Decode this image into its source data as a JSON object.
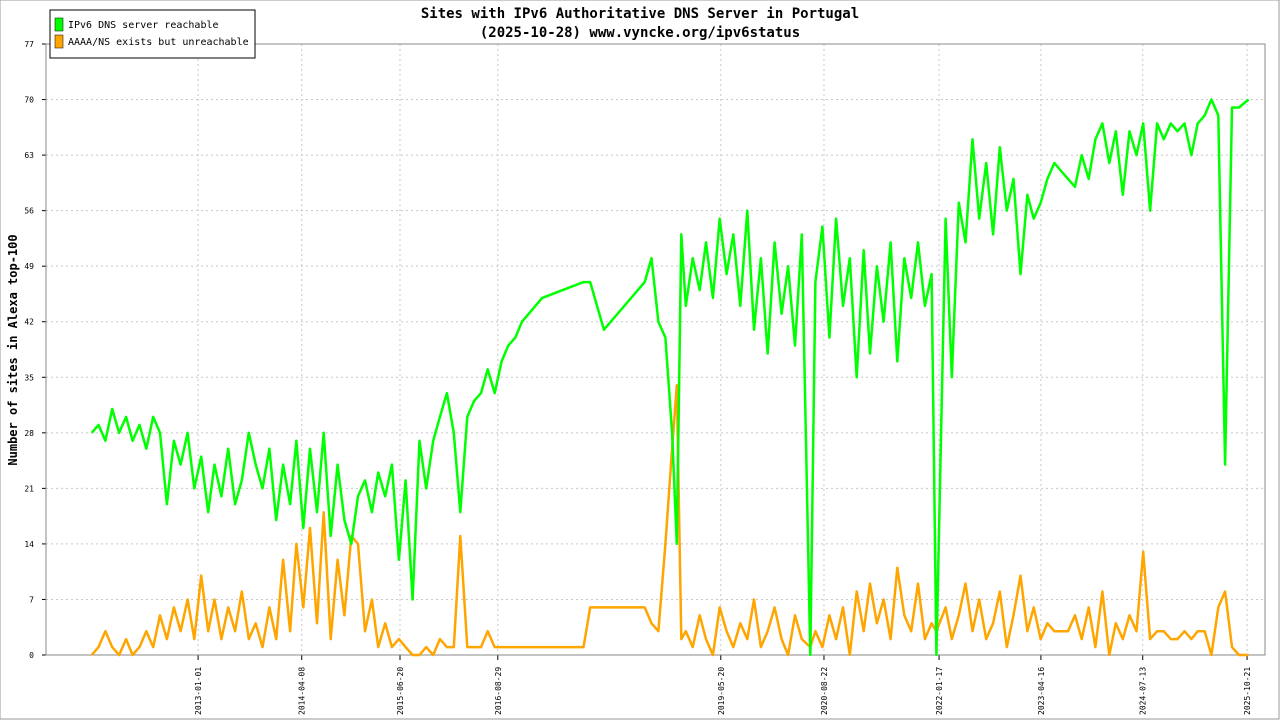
{
  "chart_data": {
    "type": "line",
    "title": "Sites with IPv6 Authoritative DNS Server in Portugal",
    "subtitle": "(2025-10-28) www.vyncke.org/ipv6status",
    "y_label": "Number of sites in Alexa top-100",
    "xlim": [
      "2011-02-23",
      "2026-01-09"
    ],
    "ylim": [
      0,
      77
    ],
    "yticks": [
      0,
      7,
      14,
      21,
      28,
      35,
      42,
      49,
      56,
      63,
      70,
      77
    ],
    "xticks": [
      "2013-01-01",
      "2014-04-08",
      "2015-06-20",
      "2016-08-29",
      "2019-05-20",
      "2020-08-22",
      "2022-01-17",
      "2023-04-16",
      "2024-07-13",
      "2025-10-21"
    ],
    "grid": true,
    "legend": "upper left",
    "x": [
      "2011-09-15",
      "2011-10-15",
      "2011-11-15",
      "2011-12-15",
      "2012-01-15",
      "2012-02-15",
      "2012-03-15",
      "2012-04-15",
      "2012-05-15",
      "2012-06-15",
      "2012-07-15",
      "2012-08-15",
      "2012-09-15",
      "2012-10-15",
      "2012-11-15",
      "2012-12-15",
      "2013-01-15",
      "2013-02-15",
      "2013-03-15",
      "2013-04-15",
      "2013-05-15",
      "2013-06-15",
      "2013-07-15",
      "2013-08-15",
      "2013-09-15",
      "2013-10-15",
      "2013-11-15",
      "2013-12-15",
      "2014-01-15",
      "2014-02-15",
      "2014-03-15",
      "2014-04-15",
      "2014-05-15",
      "2014-06-15",
      "2014-07-15",
      "2014-08-15",
      "2014-09-15",
      "2014-10-15",
      "2014-11-15",
      "2014-12-15",
      "2015-01-15",
      "2015-02-15",
      "2015-03-15",
      "2015-04-15",
      "2015-05-15",
      "2015-06-15",
      "2015-07-15",
      "2015-08-15",
      "2015-09-15",
      "2015-10-15",
      "2015-11-15",
      "2015-12-15",
      "2016-01-15",
      "2016-02-15",
      "2016-03-15",
      "2016-04-15",
      "2016-05-15",
      "2016-06-15",
      "2016-07-15",
      "2016-08-15",
      "2016-09-15",
      "2016-10-15",
      "2016-11-15",
      "2016-12-15",
      "2017-03-15",
      "2017-09-15",
      "2017-10-15",
      "2017-12-15",
      "2018-06-15",
      "2018-07-15",
      "2018-08-15",
      "2018-09-15",
      "2018-10-15",
      "2018-11-05",
      "2018-11-25",
      "2018-12-15",
      "2019-01-15",
      "2019-02-15",
      "2019-03-15",
      "2019-04-15",
      "2019-05-15",
      "2019-06-15",
      "2019-07-15",
      "2019-08-15",
      "2019-09-15",
      "2019-10-15",
      "2019-11-15",
      "2019-12-15",
      "2020-01-15",
      "2020-02-15",
      "2020-03-15",
      "2020-04-15",
      "2020-05-15",
      "2020-06-22",
      "2020-07-15",
      "2020-08-15",
      "2020-09-15",
      "2020-10-15",
      "2020-11-15",
      "2020-12-15",
      "2021-01-15",
      "2021-02-15",
      "2021-03-15",
      "2021-04-15",
      "2021-05-15",
      "2021-06-15",
      "2021-07-15",
      "2021-08-15",
      "2021-09-15",
      "2021-10-15",
      "2021-11-15",
      "2021-12-15",
      "2022-01-05",
      "2022-02-15",
      "2022-03-15",
      "2022-04-15",
      "2022-05-15",
      "2022-06-15",
      "2022-07-15",
      "2022-08-15",
      "2022-09-15",
      "2022-10-15",
      "2022-11-15",
      "2022-12-15",
      "2023-01-15",
      "2023-02-15",
      "2023-03-15",
      "2023-04-15",
      "2023-05-15",
      "2023-06-15",
      "2023-07-15",
      "2023-08-15",
      "2023-09-15",
      "2023-10-15",
      "2023-11-15",
      "2023-12-15",
      "2024-01-15",
      "2024-02-15",
      "2024-03-15",
      "2024-04-15",
      "2024-05-15",
      "2024-06-15",
      "2024-07-15",
      "2024-08-15",
      "2024-09-15",
      "2024-10-15",
      "2024-11-15",
      "2024-12-15",
      "2025-01-15",
      "2025-02-15",
      "2025-03-15",
      "2025-04-15",
      "2025-05-15",
      "2025-06-15",
      "2025-07-15",
      "2025-08-15",
      "2025-09-15",
      "2025-10-28"
    ],
    "series": [
      {
        "name": "IPv6 DNS server reachable",
        "color": "#00ff00",
        "values": [
          28,
          29,
          27,
          31,
          28,
          30,
          27,
          29,
          26,
          30,
          28,
          19,
          27,
          24,
          28,
          21,
          25,
          18,
          24,
          20,
          26,
          19,
          22,
          28,
          24,
          21,
          26,
          17,
          24,
          19,
          27,
          16,
          26,
          18,
          28,
          15,
          24,
          17,
          14,
          20,
          22,
          18,
          23,
          20,
          24,
          12,
          22,
          7,
          27,
          21,
          27,
          30,
          33,
          28,
          18,
          30,
          32,
          33,
          36,
          33,
          37,
          39,
          40,
          42,
          45,
          47,
          47,
          41,
          47,
          50,
          42,
          40,
          28,
          14,
          53,
          44,
          50,
          46,
          52,
          45,
          55,
          48,
          53,
          44,
          56,
          41,
          50,
          38,
          52,
          43,
          49,
          39,
          53,
          0,
          47,
          54,
          40,
          55,
          44,
          50,
          35,
          51,
          38,
          49,
          42,
          52,
          37,
          50,
          45,
          52,
          44,
          48,
          0,
          55,
          35,
          57,
          52,
          65,
          55,
          62,
          53,
          64,
          56,
          60,
          48,
          58,
          55,
          57,
          60,
          62,
          61,
          60,
          59,
          63,
          60,
          65,
          67,
          62,
          66,
          58,
          66,
          63,
          67,
          56,
          67,
          65,
          67,
          66,
          67,
          63,
          67,
          68,
          70,
          68,
          24,
          69,
          69,
          70
        ]
      },
      {
        "name": "AAAA/NS exists but unreachable",
        "color": "#ffa500",
        "values": [
          0,
          1,
          3,
          1,
          0,
          2,
          0,
          1,
          3,
          1,
          5,
          2,
          6,
          3,
          7,
          2,
          10,
          3,
          7,
          2,
          6,
          3,
          8,
          2,
          4,
          1,
          6,
          2,
          12,
          3,
          14,
          6,
          16,
          4,
          18,
          2,
          12,
          5,
          15,
          14,
          3,
          7,
          1,
          4,
          1,
          2,
          1,
          0,
          0,
          1,
          0,
          2,
          1,
          1,
          15,
          1,
          1,
          1,
          3,
          1,
          1,
          1,
          1,
          1,
          1,
          1,
          6,
          6,
          6,
          4,
          3,
          14,
          26,
          34,
          2,
          3,
          1,
          5,
          2,
          0,
          6,
          3,
          1,
          4,
          2,
          7,
          1,
          3,
          6,
          2,
          0,
          5,
          2,
          1,
          3,
          1,
          5,
          2,
          6,
          0,
          8,
          3,
          9,
          4,
          7,
          2,
          11,
          5,
          3,
          9,
          2,
          4,
          3,
          6,
          2,
          5,
          9,
          3,
          7,
          2,
          4,
          8,
          1,
          5,
          10,
          3,
          6,
          2,
          4,
          3,
          3,
          3,
          5,
          2,
          6,
          1,
          8,
          0,
          4,
          2,
          5,
          3,
          13,
          2,
          3,
          3,
          2,
          2,
          3,
          2,
          3,
          3,
          0,
          6,
          8,
          1,
          0,
          0
        ]
      }
    ]
  }
}
